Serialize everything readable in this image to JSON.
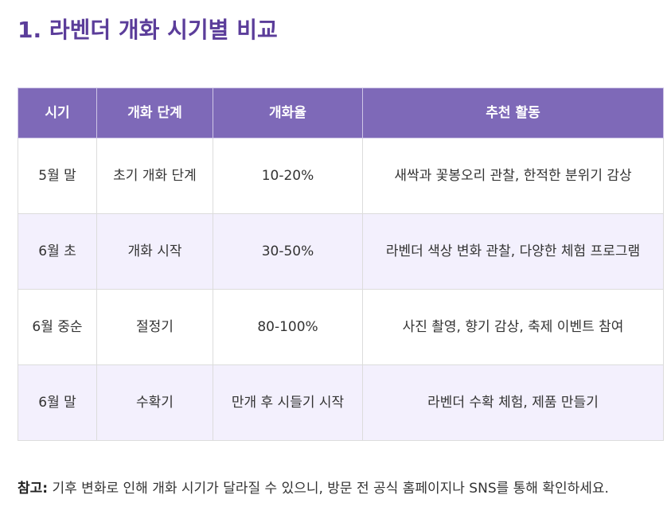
{
  "title": "1. 라벤더 개화 시기별 비교",
  "table": {
    "headers": [
      "시기",
      "개화 단계",
      "개화율",
      "추천 활동"
    ],
    "rows": [
      [
        "5월 말",
        "초기 개화 단계",
        "10-20%",
        "새싹과 꽃봉오리 관찰, 한적한 분위기 감상"
      ],
      [
        "6월 초",
        "개화 시작",
        "30-50%",
        "라벤더 색상 변화 관찰, 다양한 체험 프로그램"
      ],
      [
        "6월 중순",
        "절정기",
        "80-100%",
        "사진 촬영, 향기 감상, 축제 이벤트 참여"
      ],
      [
        "6월 말",
        "수확기",
        "만개 후 시들기 시작",
        "라벤더 수확 체험, 제품 만들기"
      ]
    ]
  },
  "note": {
    "label": "참고:",
    "text": " 기후 변화로 인해 개화 시기가 달라질 수 있으니, 방문 전 공식 홈페이지나 SNS를 통해 확인하세요."
  },
  "colors": {
    "title": "#5b3d9a",
    "header_bg": "#7e69b8",
    "stripe_bg": "#f3f0fd"
  }
}
